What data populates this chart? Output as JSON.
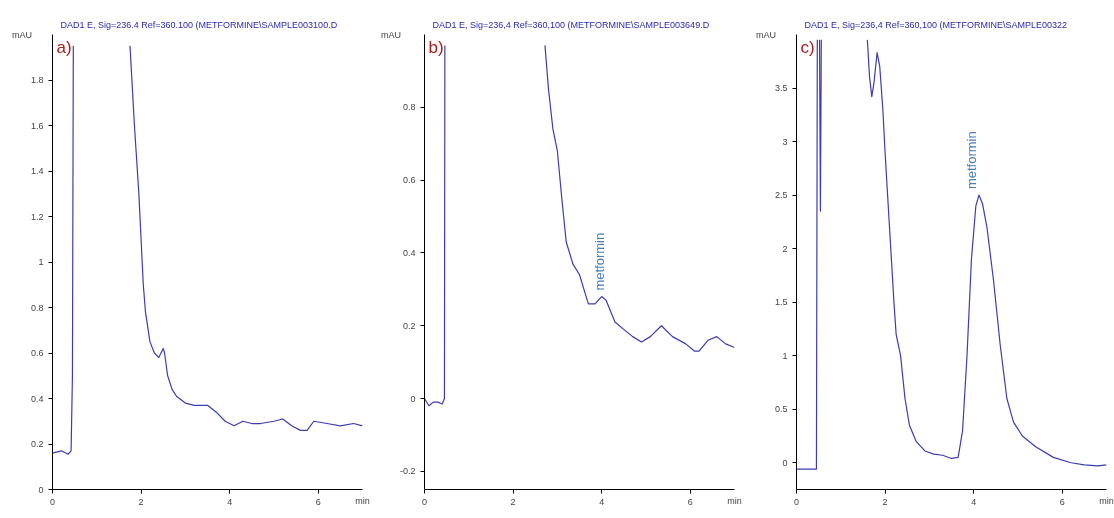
{
  "chart_data": [
    {
      "type": "line",
      "title": "DAD1 E, Sig=236.4 Ref=360.100 (METFORMINE\\SAMPLE003100.D",
      "xlabel": "min",
      "ylabel": "mAU",
      "annotations": [
        "a)"
      ],
      "xlim": [
        0,
        7
      ],
      "xticks": [
        0,
        2,
        4,
        6
      ],
      "ylim": [
        0,
        2.0
      ],
      "yticks": [
        0,
        0.2,
        0.4,
        0.6,
        0.8,
        1,
        1.2,
        1.4,
        1.6,
        1.8
      ],
      "grid": false,
      "series": [
        {
          "color": "#3c3cb4",
          "x": [
            0,
            0.2,
            0.35,
            0.42,
            0.45,
            0.47,
            0.48,
            1.75,
            1.85,
            1.95,
            2.0,
            2.05,
            2.1,
            2.2,
            2.3,
            2.4,
            2.5,
            2.53,
            2.6,
            2.7,
            2.8,
            3.0,
            3.2,
            3.5,
            3.7,
            3.9,
            4.1,
            4.3,
            4.5,
            4.7,
            5.0,
            5.2,
            5.4,
            5.6,
            5.75,
            5.9,
            6.2,
            6.5,
            6.8,
            7.0
          ],
          "values": [
            0.16,
            0.17,
            0.155,
            0.17,
            0.5,
            1.95,
            null,
            1.95,
            1.6,
            1.3,
            1.1,
            0.9,
            0.78,
            0.65,
            0.6,
            0.58,
            0.62,
            0.6,
            0.5,
            0.44,
            0.41,
            0.38,
            0.37,
            0.37,
            0.34,
            0.3,
            0.28,
            0.3,
            0.29,
            0.29,
            0.3,
            0.31,
            0.28,
            0.26,
            0.26,
            0.3,
            0.29,
            0.28,
            0.29,
            0.28
          ]
        }
      ]
    },
    {
      "type": "line",
      "title": "DAD1 E, Sig=236,4 Ref=360,100 (METFORMINE\\SAMPLE003649.D",
      "xlabel": "min",
      "ylabel": "mAU",
      "annotations": [
        "b)",
        "metformin"
      ],
      "xlim": [
        0,
        7
      ],
      "xticks": [
        0,
        2,
        4,
        6
      ],
      "ylim": [
        -0.25,
        1.0
      ],
      "yticks": [
        -0.2,
        0,
        0.2,
        0.4,
        0.6,
        0.8
      ],
      "grid": false,
      "series": [
        {
          "color": "#3c3cb4",
          "x": [
            0,
            0.1,
            0.2,
            0.3,
            0.4,
            0.45,
            0.46,
            0.47,
            2.72,
            2.8,
            2.9,
            3.0,
            3.1,
            3.2,
            3.35,
            3.5,
            3.6,
            3.7,
            3.85,
            4.0,
            4.1,
            4.3,
            4.5,
            4.7,
            4.9,
            5.1,
            5.35,
            5.6,
            5.9,
            6.1,
            6.2,
            6.4,
            6.6,
            6.8,
            7.0
          ],
          "values": [
            0.0,
            -0.02,
            -0.01,
            -0.01,
            -0.015,
            0.0,
            0.97,
            null,
            0.97,
            0.85,
            0.74,
            0.68,
            0.55,
            0.43,
            0.37,
            0.34,
            0.3,
            0.26,
            0.26,
            0.28,
            0.27,
            0.21,
            0.19,
            0.17,
            0.155,
            0.17,
            0.2,
            0.17,
            0.15,
            0.13,
            0.13,
            0.16,
            0.17,
            0.15,
            0.14
          ]
        }
      ]
    },
    {
      "type": "line",
      "title": "DAD1 E, Sig=236,4 Ref=360,100 (METFORMINE\\SAMPLE00322",
      "xlabel": "min",
      "ylabel": "mAU",
      "annotations": [
        "c)",
        "metformin"
      ],
      "xlim": [
        0,
        7
      ],
      "xticks": [
        0,
        2,
        4,
        6
      ],
      "ylim": [
        -0.25,
        4.0
      ],
      "yticks": [
        0,
        0.5,
        1,
        1.5,
        2,
        2.5,
        3,
        3.5
      ],
      "grid": false,
      "series": [
        {
          "color": "#3c3cb4",
          "x": [
            0,
            0.2,
            0.45,
            0.47,
            0.49,
            0.52,
            0.54,
            0.56,
            0.58,
            1.6,
            1.65,
            1.7,
            1.75,
            1.82,
            1.88,
            1.95,
            2.0,
            2.1,
            2.2,
            2.25,
            2.35,
            2.45,
            2.55,
            2.7,
            2.9,
            3.1,
            3.3,
            3.5,
            3.65,
            3.75,
            3.85,
            3.95,
            4.05,
            4.12,
            4.2,
            4.3,
            4.45,
            4.6,
            4.75,
            4.9,
            5.1,
            5.4,
            5.8,
            6.2,
            6.5,
            6.8,
            7.0
          ],
          "values": [
            -0.06,
            -0.06,
            -0.06,
            3.95,
            null,
            3.95,
            2.35,
            3.95,
            null,
            3.95,
            3.6,
            3.42,
            3.55,
            3.83,
            3.7,
            3.3,
            2.9,
            2.2,
            1.5,
            1.2,
            1.0,
            0.6,
            0.35,
            0.2,
            0.11,
            0.08,
            0.07,
            0.04,
            0.05,
            0.3,
            1.0,
            1.9,
            2.4,
            2.5,
            2.42,
            2.2,
            1.7,
            1.1,
            0.6,
            0.38,
            0.25,
            0.15,
            0.05,
            0.0,
            -0.02,
            -0.03,
            -0.02
          ]
        }
      ]
    }
  ]
}
